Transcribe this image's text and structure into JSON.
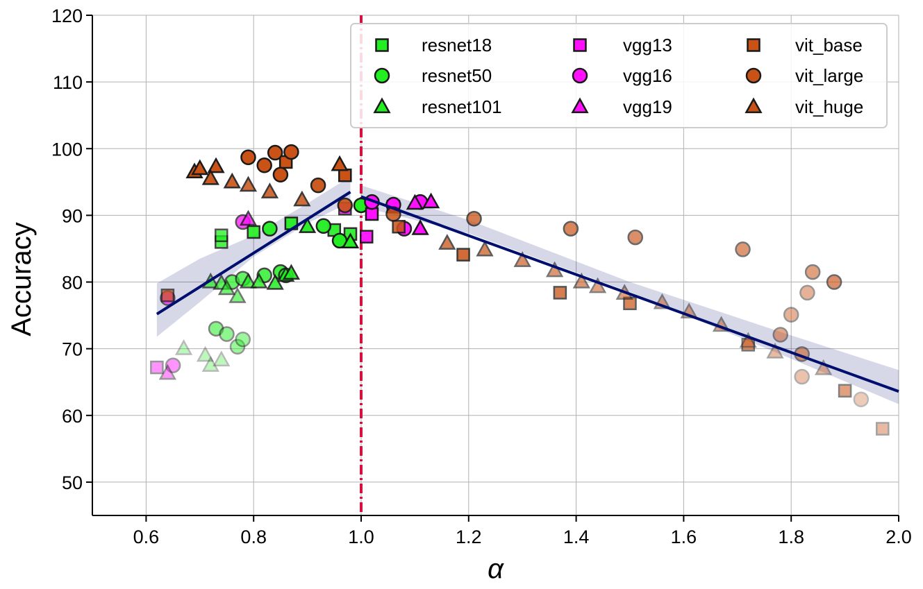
{
  "chart_data": {
    "type": "scatter",
    "xlabel": "α",
    "ylabel": "Accuracy",
    "xlim": [
      0.5,
      2.0
    ],
    "ylim": [
      45,
      120
    ],
    "xticks": [
      "0.6",
      "0.8",
      "1.0",
      "1.2",
      "1.4",
      "1.6",
      "1.8",
      "2.0"
    ],
    "yticks": [
      "50",
      "60",
      "70",
      "80",
      "90",
      "100",
      "110",
      "120"
    ],
    "grid": true,
    "legend_position": "top-right",
    "vertical_line": {
      "x": 1.0,
      "style": "dash-dot",
      "color": "#d6113e"
    },
    "series": [
      {
        "name": "resnet18",
        "marker": "square",
        "color": "#22ee22",
        "points": [
          [
            0.74,
            86.0,
            0.8
          ],
          [
            0.8,
            87.5,
            0.9
          ],
          [
            0.87,
            88.8,
            0.95
          ],
          [
            0.95,
            87.8,
            0.9
          ],
          [
            0.98,
            87.2,
            0.9
          ],
          [
            0.74,
            87.0,
            0.75
          ]
        ]
      },
      {
        "name": "resnet50",
        "marker": "circle",
        "color": "#22ee22",
        "points": [
          [
            0.73,
            73.0,
            0.55
          ],
          [
            0.75,
            72.2,
            0.5
          ],
          [
            0.77,
            70.3,
            0.45
          ],
          [
            0.78,
            71.4,
            0.45
          ],
          [
            0.82,
            81.0,
            0.8
          ],
          [
            0.85,
            81.5,
            0.85
          ],
          [
            0.86,
            81.0,
            0.85
          ],
          [
            0.83,
            88.0,
            0.95
          ],
          [
            0.93,
            88.4,
            0.95
          ],
          [
            0.96,
            86.2,
            1.0
          ],
          [
            1.0,
            91.5,
            1.0
          ],
          [
            0.76,
            80.0,
            0.7
          ],
          [
            0.78,
            80.5,
            0.7
          ]
        ]
      },
      {
        "name": "resnet101",
        "marker": "triangle",
        "color": "#22ee22",
        "points": [
          [
            0.67,
            70.0,
            0.3
          ],
          [
            0.71,
            69.0,
            0.3
          ],
          [
            0.72,
            67.5,
            0.3
          ],
          [
            0.74,
            68.3,
            0.3
          ],
          [
            0.72,
            80.0,
            0.7
          ],
          [
            0.74,
            79.8,
            0.7
          ],
          [
            0.75,
            79.0,
            0.65
          ],
          [
            0.77,
            77.8,
            0.6
          ],
          [
            0.79,
            80.0,
            0.75
          ],
          [
            0.81,
            80.0,
            0.8
          ],
          [
            0.84,
            79.8,
            0.85
          ],
          [
            0.86,
            81.0,
            0.85
          ],
          [
            0.87,
            81.3,
            0.9
          ],
          [
            0.9,
            88.3,
            0.95
          ],
          [
            0.98,
            86.0,
            1.0
          ]
        ]
      },
      {
        "name": "vgg13",
        "marker": "square",
        "color": "#ff11ff",
        "points": [
          [
            0.62,
            67.2,
            0.45
          ],
          [
            0.97,
            91.0,
            0.85
          ],
          [
            1.01,
            86.8,
            0.95
          ],
          [
            1.02,
            90.2,
            1.0
          ],
          [
            1.06,
            91.3,
            1.0
          ]
        ]
      },
      {
        "name": "vgg16",
        "marker": "circle",
        "color": "#ff11ff",
        "points": [
          [
            0.64,
            77.6,
            0.65
          ],
          [
            0.65,
            67.5,
            0.45
          ],
          [
            0.78,
            89.0,
            0.75
          ],
          [
            1.02,
            92.0,
            1.0
          ],
          [
            1.06,
            91.6,
            1.0
          ],
          [
            1.08,
            88.0,
            0.95
          ],
          [
            1.11,
            92.0,
            1.0
          ]
        ]
      },
      {
        "name": "vgg19",
        "marker": "triangle",
        "color": "#ff11ff",
        "points": [
          [
            0.64,
            66.3,
            0.45
          ],
          [
            0.79,
            89.4,
            0.8
          ],
          [
            1.1,
            91.8,
            1.0
          ],
          [
            1.11,
            88.0,
            1.0
          ],
          [
            1.13,
            92.0,
            1.0
          ]
        ]
      },
      {
        "name": "vit_base",
        "marker": "square",
        "color": "#c95316",
        "points": [
          [
            0.64,
            78.0,
            0.7
          ],
          [
            0.86,
            98.0,
            1.0
          ],
          [
            0.97,
            96.0,
            1.0
          ],
          [
            1.07,
            88.3,
            0.85
          ],
          [
            1.19,
            84.1,
            0.85
          ],
          [
            1.37,
            78.4,
            0.75
          ],
          [
            1.5,
            76.8,
            0.7
          ],
          [
            1.72,
            70.6,
            0.6
          ],
          [
            1.9,
            63.7,
            0.55
          ],
          [
            1.97,
            58.0,
            0.4
          ]
        ]
      },
      {
        "name": "vit_large",
        "marker": "circle",
        "color": "#c95316",
        "points": [
          [
            0.79,
            98.7,
            1.0
          ],
          [
            0.82,
            97.5,
            1.0
          ],
          [
            0.84,
            99.4,
            1.0
          ],
          [
            0.85,
            96.1,
            1.0
          ],
          [
            0.87,
            99.5,
            1.0
          ],
          [
            0.92,
            94.5,
            0.95
          ],
          [
            0.97,
            91.5,
            0.9
          ],
          [
            1.06,
            90.2,
            0.85
          ],
          [
            1.21,
            89.5,
            0.75
          ],
          [
            1.39,
            88.0,
            0.7
          ],
          [
            1.51,
            86.7,
            0.65
          ],
          [
            1.71,
            84.9,
            0.6
          ],
          [
            1.78,
            72.1,
            0.5
          ],
          [
            1.8,
            75.1,
            0.45
          ],
          [
            1.82,
            65.8,
            0.35
          ],
          [
            1.82,
            69.2,
            0.55
          ],
          [
            1.83,
            78.4,
            0.45
          ],
          [
            1.84,
            81.5,
            0.55
          ],
          [
            1.88,
            80.0,
            0.65
          ],
          [
            1.93,
            62.4,
            0.3
          ]
        ]
      },
      {
        "name": "vit_huge",
        "marker": "triangle",
        "color": "#c95316",
        "points": [
          [
            0.69,
            96.5,
            1.0
          ],
          [
            0.7,
            97.0,
            1.0
          ],
          [
            0.73,
            97.3,
            1.0
          ],
          [
            0.72,
            95.5,
            0.95
          ],
          [
            0.76,
            95.0,
            0.9
          ],
          [
            0.79,
            94.5,
            0.85
          ],
          [
            0.83,
            93.5,
            0.85
          ],
          [
            0.89,
            92.3,
            0.85
          ],
          [
            0.96,
            97.6,
            1.0
          ],
          [
            1.16,
            85.8,
            0.75
          ],
          [
            1.23,
            84.8,
            0.7
          ],
          [
            1.3,
            83.2,
            0.65
          ],
          [
            1.36,
            81.7,
            0.6
          ],
          [
            1.41,
            80.0,
            0.6
          ],
          [
            1.44,
            79.3,
            0.55
          ],
          [
            1.49,
            78.3,
            0.55
          ],
          [
            1.56,
            76.9,
            0.5
          ],
          [
            1.61,
            75.5,
            0.5
          ],
          [
            1.67,
            73.5,
            0.5
          ],
          [
            1.72,
            71.1,
            0.45
          ],
          [
            1.77,
            69.5,
            0.4
          ],
          [
            1.86,
            67.0,
            0.4
          ]
        ]
      }
    ],
    "fit_lines": [
      {
        "color": "#000e6e",
        "points": [
          [
            0.62,
            75.2
          ],
          [
            0.98,
            93.5
          ]
        ],
        "band": {
          "lower": [
            [
              0.62,
              71.8
            ],
            [
              0.7,
              77.0
            ],
            [
              0.8,
              83.8
            ],
            [
              0.9,
              88.8
            ],
            [
              0.98,
              92.0
            ]
          ],
          "upper": [
            [
              0.62,
              79.8
            ],
            [
              0.7,
              83.5
            ],
            [
              0.8,
              87.0
            ],
            [
              0.9,
              91.8
            ],
            [
              0.98,
              95.8
            ]
          ]
        }
      },
      {
        "color": "#000e6e",
        "points": [
          [
            1.0,
            92.8
          ],
          [
            2.0,
            63.6
          ]
        ],
        "band": {
          "lower": [
            [
              1.0,
              91.3
            ],
            [
              1.2,
              87.3
            ],
            [
              1.5,
              78.5
            ],
            [
              1.8,
              68.5
            ],
            [
              2.0,
              61.7
            ]
          ],
          "upper": [
            [
              1.0,
              94.5
            ],
            [
              1.2,
              89.3
            ],
            [
              1.5,
              80.0
            ],
            [
              1.8,
              72.0
            ],
            [
              2.0,
              66.8
            ]
          ]
        }
      }
    ]
  }
}
